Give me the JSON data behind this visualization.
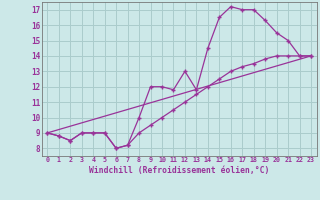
{
  "background_color": "#cce8e8",
  "grid_color": "#aacccc",
  "line_color": "#993399",
  "xlabel": "Windchill (Refroidissement éolien,°C)",
  "yticks": [
    8,
    9,
    10,
    11,
    12,
    13,
    14,
    15,
    16,
    17
  ],
  "xtick_labels": [
    "0",
    "1",
    "2",
    "3",
    "4",
    "5",
    "6",
    "7",
    "8",
    "9",
    "10",
    "11",
    "12",
    "13",
    "14",
    "15",
    "16",
    "17",
    "18",
    "19",
    "20",
    "21",
    "22",
    "23"
  ],
  "xlim": [
    -0.5,
    23.5
  ],
  "ylim": [
    7.5,
    17.5
  ],
  "line1_x": [
    0,
    1,
    2,
    3,
    4,
    5,
    6,
    7,
    8,
    9,
    10,
    11,
    12,
    13,
    14,
    15,
    16,
    17,
    18,
    19,
    20,
    21,
    22,
    23
  ],
  "line1_y": [
    9.0,
    8.8,
    8.5,
    9.0,
    9.0,
    9.0,
    8.0,
    8.2,
    10.0,
    12.0,
    12.0,
    11.8,
    13.0,
    11.8,
    14.5,
    16.5,
    17.2,
    17.0,
    17.0,
    16.3,
    15.5,
    15.0,
    14.0,
    14.0
  ],
  "line2_x": [
    0,
    1,
    2,
    3,
    4,
    5,
    6,
    7,
    8,
    9,
    10,
    11,
    12,
    13,
    14,
    15,
    16,
    17,
    18,
    19,
    20,
    21,
    22,
    23
  ],
  "line2_y": [
    9.0,
    8.8,
    8.5,
    9.0,
    9.0,
    9.0,
    8.0,
    8.2,
    9.0,
    9.5,
    10.0,
    10.5,
    11.0,
    11.5,
    12.0,
    12.5,
    13.0,
    13.3,
    13.5,
    13.8,
    14.0,
    14.0,
    14.0,
    14.0
  ],
  "line3_x": [
    0,
    23
  ],
  "line3_y": [
    9.0,
    14.0
  ]
}
